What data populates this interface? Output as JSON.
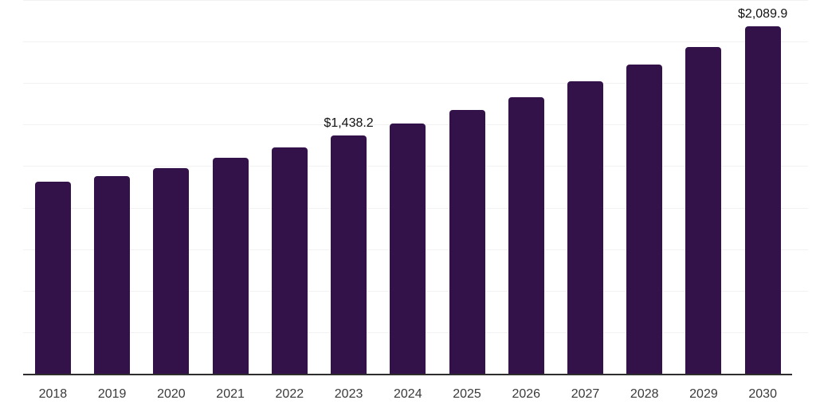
{
  "chart_data": {
    "type": "bar",
    "title": "",
    "xlabel": "",
    "ylabel": "",
    "categories": [
      "2018",
      "2019",
      "2020",
      "2021",
      "2022",
      "2023",
      "2024",
      "2025",
      "2026",
      "2027",
      "2028",
      "2029",
      "2030"
    ],
    "values": [
      1160,
      1190,
      1240,
      1300,
      1365,
      1438.2,
      1508,
      1588,
      1665,
      1763,
      1864,
      1970,
      2089.9
    ],
    "data_labels": [
      "",
      "",
      "",
      "",
      "",
      "$1,438.2",
      "",
      "",
      "",
      "",
      "",
      "",
      "$2,089.9"
    ],
    "ylim": [
      0,
      2250
    ],
    "grid_step": 250,
    "grid": "horizontal",
    "legend": false,
    "colors": {
      "bar": "#33124a",
      "axis_line": "#2e2e2e",
      "gridline": "#f2f2f2",
      "tick_label": "#3a3a3a",
      "data_label": "#111111",
      "background": "#ffffff"
    }
  }
}
